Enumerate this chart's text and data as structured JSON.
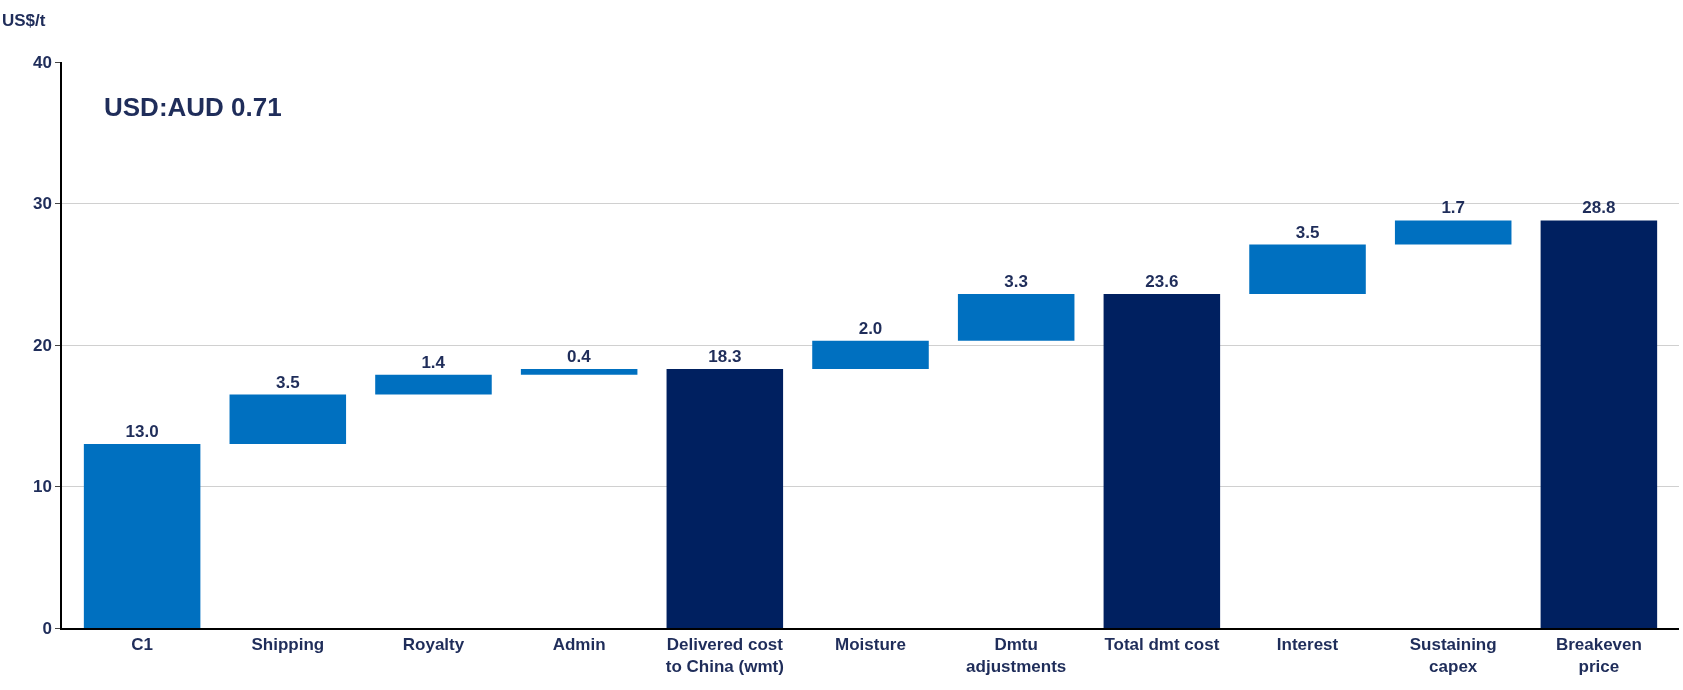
{
  "chart_data": {
    "type": "bar",
    "ylabel": "US$/t",
    "categories": [
      "C1",
      "Shipping",
      "Royalty",
      "Admin",
      "Delivered cost\nto China (wmt)",
      "Moisture",
      "Dmtu\nadjustments",
      "Total dmt cost",
      "Interest",
      "Sustaining\ncapex",
      "Breakeven\nprice"
    ],
    "values": [
      13.0,
      3.5,
      1.4,
      0.4,
      18.3,
      2.0,
      3.3,
      23.6,
      3.5,
      1.7,
      28.8
    ],
    "base": [
      0,
      13.0,
      16.5,
      17.9,
      0,
      18.3,
      20.3,
      0,
      23.6,
      27.1,
      0
    ],
    "colors": [
      "#0070c0",
      "#0070c0",
      "#0070c0",
      "#0070c0",
      "#002060",
      "#0070c0",
      "#0070c0",
      "#002060",
      "#0070c0",
      "#0070c0",
      "#002060"
    ],
    "value_labels": [
      "13.0",
      "3.5",
      "1.4",
      "0.4",
      "18.3",
      "2.0",
      "3.3",
      "23.6",
      "3.5",
      "1.7",
      "28.8"
    ],
    "ylim": [
      0,
      40
    ],
    "yticks": [
      0,
      10,
      20,
      30,
      40
    ],
    "grid": "y",
    "annotations": [
      "USD:AUD 0.71"
    ]
  }
}
